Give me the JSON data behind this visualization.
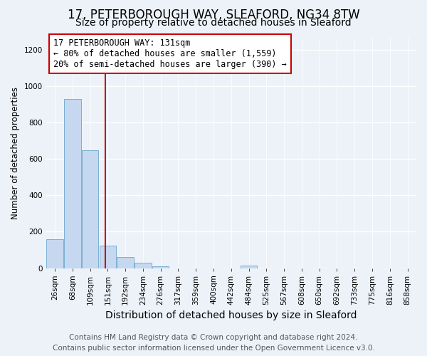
{
  "title": "17, PETERBOROUGH WAY, SLEAFORD, NG34 8TW",
  "subtitle": "Size of property relative to detached houses in Sleaford",
  "xlabel": "Distribution of detached houses by size in Sleaford",
  "ylabel": "Number of detached properties",
  "bar_labels": [
    "26sqm",
    "68sqm",
    "109sqm",
    "151sqm",
    "192sqm",
    "234sqm",
    "276sqm",
    "317sqm",
    "359sqm",
    "400sqm",
    "442sqm",
    "484sqm",
    "525sqm",
    "567sqm",
    "608sqm",
    "650sqm",
    "692sqm",
    "733sqm",
    "775sqm",
    "816sqm",
    "858sqm"
  ],
  "bar_values": [
    160,
    930,
    650,
    125,
    60,
    28,
    10,
    0,
    0,
    0,
    0,
    15,
    0,
    0,
    0,
    0,
    0,
    0,
    0,
    0,
    0
  ],
  "bar_color": "#c5d8ef",
  "bar_edge_color": "#7aafd4",
  "vline_x_index": 2.85,
  "vline_color": "#cc0000",
  "annotation_line1": "17 PETERBOROUGH WAY: 131sqm",
  "annotation_line2": "← 80% of detached houses are smaller (1,559)",
  "annotation_line3": "20% of semi-detached houses are larger (390) →",
  "annotation_box_color": "#ffffff",
  "annotation_box_edge": "#cc0000",
  "ylim_max": 1270,
  "bg_color": "#edf2f9",
  "grid_color": "#ffffff",
  "footer_line1": "Contains HM Land Registry data © Crown copyright and database right 2024.",
  "footer_line2": "Contains public sector information licensed under the Open Government Licence v3.0.",
  "title_fontsize": 12,
  "subtitle_fontsize": 10,
  "xlabel_fontsize": 10,
  "ylabel_fontsize": 8.5,
  "tick_fontsize": 7.5,
  "annotation_fontsize": 8.5,
  "footer_fontsize": 7.5
}
